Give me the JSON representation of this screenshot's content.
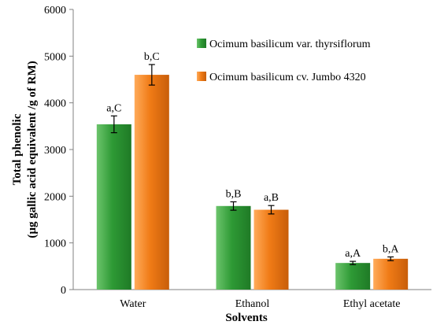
{
  "chart_data": {
    "type": "bar",
    "categories": [
      "Water",
      "Ethanol",
      "Ethyl acetate"
    ],
    "series": [
      {
        "name": "Ocimum basilicum var. thyrsiflorum",
        "color": "#3a9a3a",
        "values": [
          3540,
          1790,
          570
        ],
        "errors": [
          180,
          90,
          35
        ],
        "labels": [
          "a,C",
          "b,B",
          "a,A"
        ]
      },
      {
        "name": "Ocimum basilicum cv. Jumbo 4320",
        "color": "#f07b16",
        "values": [
          4600,
          1710,
          660
        ],
        "errors": [
          220,
          90,
          40
        ],
        "labels": [
          "b,C",
          "a,B",
          "b,A"
        ]
      }
    ],
    "ylim": [
      0,
      6000
    ],
    "yticks": [
      0,
      1000,
      2000,
      3000,
      4000,
      5000,
      6000
    ],
    "xlabel": "Solvents",
    "ylabel_line1": "Total phenolic",
    "ylabel_line2": "(µg gallic acid equivalent /g of RM)",
    "legend": "top-right",
    "grid": false
  }
}
